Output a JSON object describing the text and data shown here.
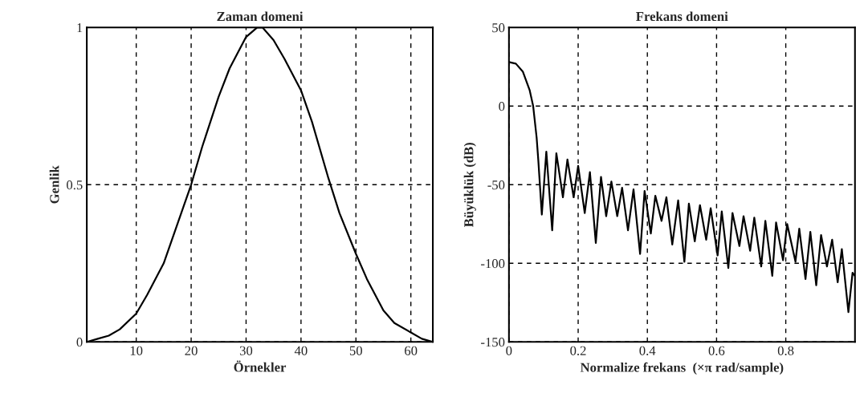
{
  "chart_data": [
    {
      "type": "line",
      "title": "Zaman domeni",
      "xlabel": "Örnekler",
      "ylabel": "Genlik",
      "xlim": [
        1,
        64
      ],
      "xticks": [
        10,
        20,
        30,
        40,
        50,
        60
      ],
      "ylim": [
        0,
        1
      ],
      "yticks": [
        0,
        0.5,
        1
      ],
      "grid": true,
      "line_style": "solid",
      "marker": "none",
      "series": [
        {
          "color": "#000000",
          "x": [
            1,
            3,
            5,
            7,
            10,
            12,
            15,
            17,
            20,
            22,
            25,
            27,
            30,
            32,
            33,
            35,
            37,
            40,
            42,
            45,
            47,
            50,
            52,
            55,
            57,
            60,
            62,
            64
          ],
          "values": [
            0,
            0.01,
            0.02,
            0.04,
            0.09,
            0.15,
            0.25,
            0.35,
            0.5,
            0.62,
            0.78,
            0.87,
            0.97,
            1.0,
            1.0,
            0.96,
            0.9,
            0.8,
            0.7,
            0.52,
            0.41,
            0.28,
            0.2,
            0.1,
            0.06,
            0.03,
            0.01,
            0
          ]
        }
      ]
    },
    {
      "type": "line",
      "title": "Frekans domeni",
      "xlabel": "Normalize frekans  (×π rad/sample)",
      "ylabel": "Büyüklük (dB)",
      "xlim": [
        0,
        1
      ],
      "xticks": [
        0,
        0.2,
        0.4,
        0.6,
        0.8
      ],
      "ylim": [
        -150,
        50
      ],
      "yticks": [
        -150,
        -100,
        -50,
        0,
        50
      ],
      "grid": true,
      "line_style": "solid",
      "marker": "none",
      "series": [
        {
          "color": "#000000",
          "x": [
            0,
            0.02,
            0.04,
            0.06,
            0.07,
            0.08,
            0.085,
            0.095,
            0.108,
            0.125,
            0.137,
            0.156,
            0.169,
            0.187,
            0.2,
            0.219,
            0.234,
            0.251,
            0.266,
            0.281,
            0.296,
            0.313,
            0.327,
            0.344,
            0.36,
            0.379,
            0.392,
            0.41,
            0.423,
            0.441,
            0.455,
            0.472,
            0.489,
            0.507,
            0.52,
            0.537,
            0.552,
            0.57,
            0.583,
            0.603,
            0.615,
            0.634,
            0.646,
            0.666,
            0.678,
            0.697,
            0.709,
            0.729,
            0.741,
            0.761,
            0.772,
            0.792,
            0.804,
            0.828,
            0.839,
            0.857,
            0.871,
            0.888,
            0.902,
            0.919,
            0.934,
            0.95,
            0.962,
            0.981,
            0.993,
            1.0
          ],
          "values": [
            28,
            27,
            22,
            10,
            0,
            -20,
            -35,
            -69,
            -29,
            -79,
            -30,
            -58,
            -34,
            -58,
            -38,
            -68,
            -42,
            -87,
            -45,
            -70,
            -48,
            -70,
            -52,
            -79,
            -53,
            -94,
            -54,
            -81,
            -57,
            -73,
            -58,
            -88,
            -60,
            -99,
            -62,
            -86,
            -63,
            -85,
            -65,
            -95,
            -67,
            -103,
            -68,
            -89,
            -70,
            -92,
            -71,
            -102,
            -73,
            -108,
            -74,
            -98,
            -75,
            -99,
            -78,
            -110,
            -80,
            -114,
            -82,
            -102,
            -85,
            -112,
            -91,
            -131,
            -106,
            -108
          ]
        }
      ]
    }
  ]
}
